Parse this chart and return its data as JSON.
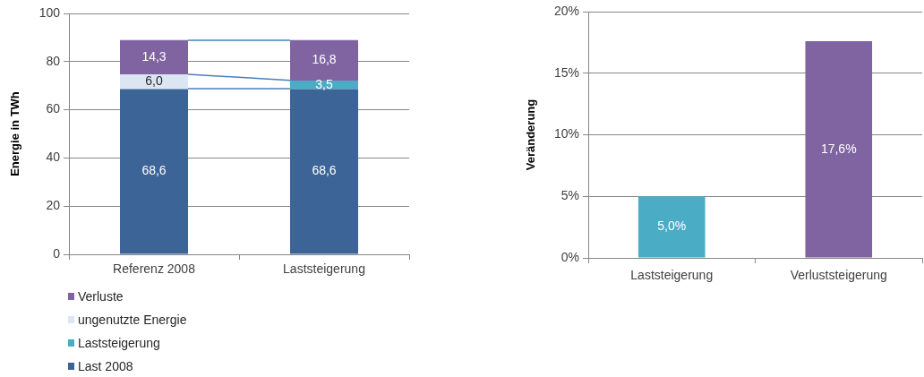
{
  "chart_data": [
    {
      "type": "bar",
      "stacked": true,
      "categories": [
        "Referenz 2008",
        "Laststeigerung"
      ],
      "ylabel": "Energie in TWh",
      "ylim": [
        0,
        100
      ],
      "yticks": [
        0,
        20,
        40,
        60,
        80,
        100
      ],
      "grid": "y",
      "legend": "bottom left",
      "series": [
        {
          "name": "Last 2008",
          "color": "#3c6496",
          "values": [
            68.6,
            68.6
          ],
          "value_labels": [
            "68,6",
            "68,6"
          ]
        },
        {
          "name": "Laststeigerung",
          "color": "#4bacc6",
          "values": [
            null,
            3.5
          ],
          "value_labels": [
            null,
            "3,5"
          ]
        },
        {
          "name": "ungenutzte Energie",
          "color": "#dce6f2",
          "values": [
            6.0,
            null
          ],
          "value_labels": [
            "6,0",
            null
          ]
        },
        {
          "name": "Verluste",
          "color": "#8064a2",
          "values": [
            14.3,
            16.8
          ],
          "value_labels": [
            "14,3",
            "16,8"
          ]
        }
      ]
    },
    {
      "type": "bar",
      "categories": [
        "Laststeigerung",
        "Verluststeigerung"
      ],
      "values": [
        5.0,
        17.6
      ],
      "colors": [
        "#4bacc6",
        "#8064a2"
      ],
      "value_labels": [
        "5,0%",
        "17,6%"
      ],
      "ylabel": "Veränderung",
      "ylim": [
        0,
        20
      ],
      "yticks": [
        {
          "value": 0,
          "label": "0%"
        },
        {
          "value": 5,
          "label": "5%"
        },
        {
          "value": 10,
          "label": "10%"
        },
        {
          "value": 15,
          "label": "15%"
        },
        {
          "value": 20,
          "label": "20%"
        }
      ],
      "grid": "y"
    }
  ]
}
